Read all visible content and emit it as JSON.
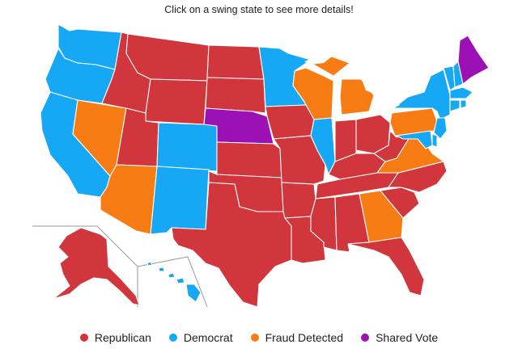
{
  "header": {
    "instruction": "Click on a swing state to see more details!"
  },
  "colors": {
    "republican": "#d0363c",
    "democrat": "#16a8f5",
    "fraud": "#f77c14",
    "shared": "#9b11b4"
  },
  "legend": [
    {
      "label": "Republican",
      "color": "#d0363c"
    },
    {
      "label": "Democrat",
      "color": "#16a8f5"
    },
    {
      "label": "Fraud Detected",
      "color": "#f77c14"
    },
    {
      "label": "Shared Vote",
      "color": "#9b11b4"
    }
  ],
  "states": {
    "WA": "democrat",
    "OR": "democrat",
    "CA": "democrat",
    "NV": "fraud",
    "ID": "republican",
    "MT": "republican",
    "WY": "republican",
    "UT": "republican",
    "AZ": "fraud",
    "CO": "democrat",
    "NM": "democrat",
    "ND": "republican",
    "SD": "republican",
    "NE": "shared",
    "KS": "republican",
    "OK": "republican",
    "TX": "republican",
    "MN": "democrat",
    "IA": "republican",
    "MO": "republican",
    "AR": "republican",
    "LA": "republican",
    "WI": "fraud",
    "IL": "democrat",
    "MI": "fraud",
    "IN": "republican",
    "OH": "republican",
    "KY": "republican",
    "TN": "republican",
    "MS": "republican",
    "AL": "republican",
    "GA": "fraud",
    "FL": "republican",
    "SC": "republican",
    "NC": "republican",
    "VA": "fraud",
    "WV": "republican",
    "PA": "fraud",
    "NY": "democrat",
    "VT": "democrat",
    "NH": "democrat",
    "ME": "shared",
    "MA": "democrat",
    "CT": "democrat",
    "RI": "democrat",
    "NJ": "democrat",
    "DE": "democrat",
    "MD": "democrat",
    "AK": "republican",
    "HI": "democrat"
  }
}
